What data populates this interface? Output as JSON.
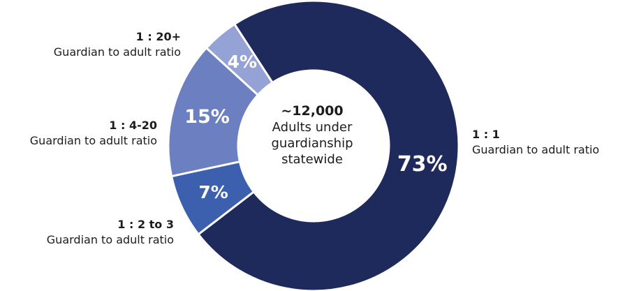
{
  "chart_data": {
    "type": "pie",
    "variant": "donut",
    "slices": [
      {
        "label": "1 : 1",
        "sublabel": "Guardian to adult ratio",
        "value": 73,
        "display": "73%",
        "color": "#1f2a5c"
      },
      {
        "label": "1 : 2 to 3",
        "sublabel": "Guardian to adult ratio",
        "value": 7,
        "display": "7%",
        "color": "#3c5fae"
      },
      {
        "label": "1 : 4-20",
        "sublabel": "Guardian to adult ratio",
        "value": 15,
        "display": "15%",
        "color": "#6b7fc1"
      },
      {
        "label": "1 : 20+",
        "sublabel": "Guardian to adult ratio",
        "value": 4,
        "display": "4%",
        "color": "#95a2d6"
      }
    ],
    "center": {
      "headline": "~12,000",
      "line1": "Adults under",
      "line2": "guardianship",
      "line3": "statewide"
    }
  }
}
